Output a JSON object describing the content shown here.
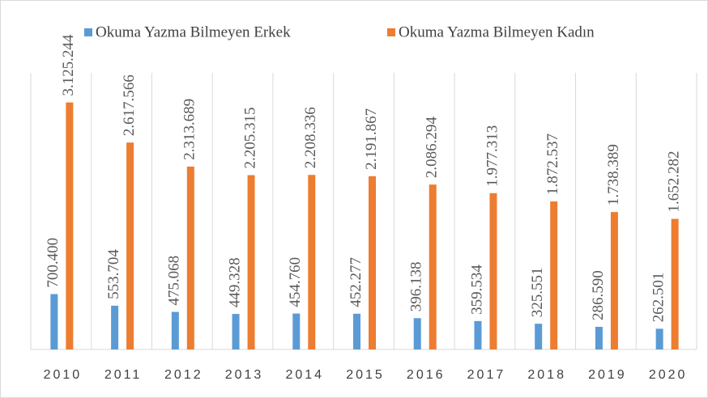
{
  "chart_data": {
    "type": "bar",
    "categories": [
      "2010",
      "2011",
      "2012",
      "2013",
      "2014",
      "2015",
      "2016",
      "2017",
      "2018",
      "2019",
      "2020"
    ],
    "series": [
      {
        "name": "Okuma Yazma Bilmeyen Erkek",
        "color": "#5b9bd5",
        "values": [
          700400,
          553704,
          475068,
          449328,
          454760,
          452277,
          396138,
          359534,
          325551,
          286590,
          262501
        ],
        "value_labels": [
          "700.400",
          "553.704",
          "475.068",
          "449.328",
          "454.760",
          "452.277",
          "396.138",
          "359.534",
          "325.551",
          "286.590",
          "262.501"
        ]
      },
      {
        "name": "Okuma Yazma Bilmeyen Kadın",
        "color": "#ed7d31",
        "values": [
          3125244,
          2617566,
          2313689,
          2205315,
          2208336,
          2191867,
          2086294,
          1977313,
          1872537,
          1738389,
          1652282
        ],
        "value_labels": [
          "3.125.244",
          "2.617.566",
          "2.313.689",
          "2.205.315",
          "2.208.336",
          "2.191.867",
          "2.086.294",
          "1.977.313",
          "1.872.537",
          "1.738.389",
          "1.652.282"
        ]
      }
    ],
    "ylim": [
      0,
      3500000
    ],
    "grid": true,
    "legend": "top"
  }
}
